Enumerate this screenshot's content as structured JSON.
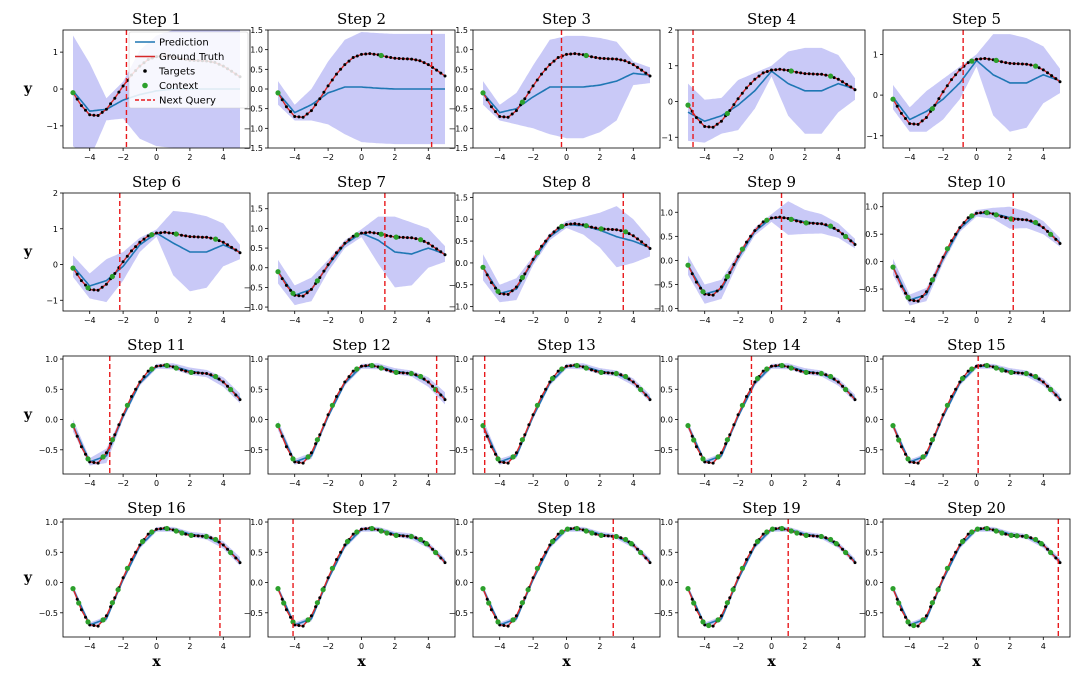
{
  "legend": {
    "prediction": "Prediction",
    "ground_truth": "Ground Truth",
    "targets": "Targets",
    "context": "Context",
    "next_query": "Next Query"
  },
  "colors": {
    "prediction": "#1f77b4",
    "uncertainty_band": "#c9c9f7",
    "ground_truth": "#d62728",
    "targets": "#000000",
    "context": "#2ca02c",
    "next_query": "#e8191c"
  },
  "chart_data": {
    "type": "line",
    "layout": "grid of 4 rows x 5 columns",
    "xlabel": "x",
    "ylabel": "y",
    "xlim": [
      -5.6,
      5.6
    ],
    "xticks": [
      -4,
      -2,
      0,
      2,
      4
    ],
    "ground_truth": {
      "x": [
        -5,
        -4.5,
        -4,
        -3.5,
        -3,
        -2.5,
        -2,
        -1.5,
        -1,
        -0.5,
        0,
        0.5,
        1,
        1.5,
        2,
        2.5,
        3,
        3.5,
        4,
        4.5,
        5
      ],
      "y": [
        -0.1,
        -0.45,
        -0.7,
        -0.72,
        -0.55,
        -0.25,
        0.08,
        0.38,
        0.62,
        0.8,
        0.88,
        0.9,
        0.87,
        0.82,
        0.78,
        0.77,
        0.76,
        0.72,
        0.62,
        0.48,
        0.33
      ]
    },
    "panels": [
      {
        "title": "Step 1",
        "query": -1.8,
        "ylim": [
          -1.6,
          1.6
        ],
        "yticks": [
          -1,
          0,
          1
        ],
        "pred_x": [
          -5,
          -4,
          -3,
          -2,
          -1,
          0,
          1,
          2,
          3,
          4,
          5
        ],
        "pred_y": [
          -0.05,
          -0.6,
          -0.55,
          -0.3,
          -0.15,
          -0.05,
          0.0,
          0.0,
          0.0,
          0.0,
          0.0
        ],
        "band": [
          1.5,
          1.3,
          0.3,
          0.5,
          1.2,
          1.5,
          1.6,
          1.6,
          1.6,
          1.6,
          1.6
        ]
      },
      {
        "title": "Step 2",
        "query": 4.2,
        "ylim": [
          -1.5,
          1.5
        ],
        "yticks": [
          -1.5,
          -1.0,
          -0.5,
          0.0,
          0.5,
          1.0,
          1.5
        ],
        "pred_x": [
          -5,
          -4,
          -3,
          -2,
          -1,
          0,
          1,
          2,
          3,
          4,
          5
        ],
        "pred_y": [
          -0.1,
          -0.6,
          -0.4,
          -0.1,
          0.05,
          0.05,
          0.02,
          0.0,
          0.0,
          0.0,
          0.0
        ],
        "band": [
          0.3,
          0.2,
          0.4,
          0.8,
          1.2,
          1.4,
          1.4,
          1.4,
          1.4,
          1.4,
          1.4
        ]
      },
      {
        "title": "Step 3",
        "query": -0.3,
        "ylim": [
          -1.5,
          1.5
        ],
        "yticks": [
          -1.5,
          -1.0,
          -0.5,
          0.0,
          0.5,
          1.0,
          1.5
        ],
        "pred_x": [
          -5,
          -4,
          -3,
          -2,
          -1,
          0,
          1,
          2,
          3,
          4,
          5
        ],
        "pred_y": [
          -0.1,
          -0.6,
          -0.5,
          -0.2,
          0.05,
          0.05,
          0.05,
          0.1,
          0.2,
          0.4,
          0.35
        ],
        "band": [
          0.3,
          0.2,
          0.4,
          0.8,
          1.2,
          1.3,
          1.3,
          1.2,
          1.0,
          0.3,
          0.2
        ]
      },
      {
        "title": "Step 4",
        "query": -4.7,
        "ylim": [
          -1.3,
          2.0
        ],
        "yticks": [
          -1,
          0,
          1,
          2
        ],
        "pred_x": [
          -5,
          -4,
          -3,
          -2,
          -1,
          0,
          1,
          2,
          3,
          4,
          5
        ],
        "pred_y": [
          -0.3,
          -0.55,
          -0.4,
          -0.1,
          0.3,
          0.85,
          0.5,
          0.3,
          0.3,
          0.5,
          0.35
        ],
        "band": [
          0.8,
          0.6,
          0.5,
          0.7,
          0.5,
          0.15,
          0.9,
          1.2,
          1.2,
          0.8,
          0.3
        ]
      },
      {
        "title": "Step 5",
        "query": -0.8,
        "ylim": [
          -1.3,
          1.6
        ],
        "yticks": [
          -1,
          0,
          1
        ],
        "pred_x": [
          -5,
          -4,
          -3,
          -2,
          -1,
          0,
          1,
          2,
          3,
          4,
          5
        ],
        "pred_y": [
          -0.05,
          -0.6,
          -0.4,
          -0.1,
          0.3,
          0.85,
          0.5,
          0.3,
          0.3,
          0.5,
          0.35
        ],
        "band": [
          0.3,
          0.3,
          0.5,
          0.5,
          0.4,
          0.15,
          1.0,
          1.2,
          1.1,
          0.7,
          0.3
        ]
      },
      {
        "title": "Step 6",
        "query": -2.2,
        "ylim": [
          -1.3,
          2.0
        ],
        "yticks": [
          -1,
          0,
          1,
          2
        ],
        "pred_x": [
          -5,
          -4,
          -3,
          -2,
          -1,
          0,
          1,
          2,
          3,
          4,
          5
        ],
        "pred_y": [
          -0.05,
          -0.6,
          -0.45,
          -0.05,
          0.55,
          0.88,
          0.6,
          0.35,
          0.35,
          0.55,
          0.35
        ],
        "band": [
          0.3,
          0.35,
          0.6,
          0.4,
          0.2,
          0.1,
          0.9,
          1.1,
          1.0,
          0.6,
          0.2
        ]
      },
      {
        "title": "Step 7",
        "query": 1.4,
        "ylim": [
          -1.1,
          1.9
        ],
        "yticks": [
          -1.0,
          -0.5,
          0.0,
          0.5,
          1.0,
          1.5
        ],
        "pred_x": [
          -5,
          -4,
          -3,
          -2,
          -1,
          0,
          1,
          2,
          3,
          4,
          5
        ],
        "pred_y": [
          -0.1,
          -0.7,
          -0.55,
          0.05,
          0.6,
          0.88,
          0.7,
          0.4,
          0.35,
          0.5,
          0.35
        ],
        "band": [
          0.3,
          0.25,
          0.3,
          0.15,
          0.1,
          0.1,
          0.6,
          0.9,
          0.8,
          0.5,
          0.2
        ]
      },
      {
        "title": "Step 8",
        "query": 3.4,
        "ylim": [
          -1.1,
          1.6
        ],
        "yticks": [
          -1.0,
          -0.5,
          0.0,
          0.5,
          1.0,
          1.5
        ],
        "pred_x": [
          -5,
          -4,
          -3,
          -2,
          -1,
          0,
          1,
          2,
          3,
          4,
          5
        ],
        "pred_y": [
          -0.1,
          -0.7,
          -0.6,
          0.05,
          0.6,
          0.88,
          0.85,
          0.75,
          0.6,
          0.5,
          0.35
        ],
        "band": [
          0.3,
          0.2,
          0.25,
          0.1,
          0.08,
          0.08,
          0.2,
          0.4,
          0.7,
          0.5,
          0.2
        ]
      },
      {
        "title": "Step 9",
        "query": 0.6,
        "ylim": [
          -1.05,
          1.4
        ],
        "yticks": [
          -1.0,
          -0.5,
          0.0,
          0.5,
          1.0
        ],
        "pred_x": [
          -5,
          -4,
          -3,
          -2,
          -1,
          0,
          1,
          2,
          3,
          4,
          5
        ],
        "pred_y": [
          -0.1,
          -0.7,
          -0.6,
          0.05,
          0.6,
          0.88,
          0.88,
          0.8,
          0.76,
          0.62,
          0.35
        ],
        "band": [
          0.2,
          0.2,
          0.2,
          0.1,
          0.08,
          0.08,
          0.35,
          0.25,
          0.2,
          0.15,
          0.1
        ]
      },
      {
        "title": "Step 10",
        "query": 2.2,
        "ylim": [
          -0.9,
          1.25
        ],
        "yticks": [
          -0.5,
          0.0,
          0.5,
          1.0
        ],
        "pred_x": [
          -5,
          -4,
          -3,
          -2,
          -1,
          0,
          1,
          2,
          3,
          4,
          5
        ],
        "pred_y": [
          -0.1,
          -0.7,
          -0.6,
          0.05,
          0.6,
          0.88,
          0.88,
          0.8,
          0.76,
          0.62,
          0.35
        ],
        "band": [
          0.15,
          0.1,
          0.12,
          0.08,
          0.06,
          0.06,
          0.1,
          0.2,
          0.15,
          0.12,
          0.08
        ]
      },
      {
        "title": "Step 11",
        "query": -2.8,
        "ylim": [
          -0.9,
          1.05
        ],
        "yticks": [
          -0.5,
          0.0,
          0.5,
          1.0
        ],
        "pred_x": [
          -5,
          -4,
          -3,
          -2,
          -1,
          0,
          1,
          2,
          3,
          4,
          5
        ],
        "pred_y": [
          -0.1,
          -0.7,
          -0.6,
          0.05,
          0.6,
          0.88,
          0.88,
          0.8,
          0.76,
          0.62,
          0.35
        ],
        "band": [
          0.1,
          0.06,
          0.12,
          0.05,
          0.04,
          0.04,
          0.05,
          0.06,
          0.06,
          0.08,
          0.08
        ]
      },
      {
        "title": "Step 12",
        "query": 4.5,
        "ylim": [
          -0.9,
          1.05
        ],
        "yticks": [
          -0.5,
          0.0,
          0.5,
          1.0
        ],
        "pred_x": [
          -5,
          -4,
          -3,
          -2,
          -1,
          0,
          1,
          2,
          3,
          4,
          5
        ],
        "pred_y": [
          -0.1,
          -0.7,
          -0.6,
          0.05,
          0.6,
          0.88,
          0.88,
          0.8,
          0.76,
          0.62,
          0.35
        ],
        "band": [
          0.08,
          0.05,
          0.05,
          0.04,
          0.04,
          0.04,
          0.05,
          0.05,
          0.05,
          0.08,
          0.1
        ]
      },
      {
        "title": "Step 13",
        "query": -4.9,
        "ylim": [
          -0.9,
          1.05
        ],
        "yticks": [
          -0.5,
          0.0,
          0.5,
          1.0
        ],
        "pred_x": [
          -5,
          -4,
          -3,
          -2,
          -1,
          0,
          1,
          2,
          3,
          4,
          5
        ],
        "pred_y": [
          -0.1,
          -0.7,
          -0.6,
          0.05,
          0.6,
          0.88,
          0.88,
          0.8,
          0.76,
          0.62,
          0.35
        ],
        "band": [
          0.1,
          0.05,
          0.04,
          0.04,
          0.04,
          0.04,
          0.05,
          0.05,
          0.05,
          0.06,
          0.06
        ]
      },
      {
        "title": "Step 14",
        "query": -1.2,
        "ylim": [
          -0.9,
          1.05
        ],
        "yticks": [
          -0.5,
          0.0,
          0.5,
          1.0
        ],
        "pred_x": [
          -5,
          -4,
          -3,
          -2,
          -1,
          0,
          1,
          2,
          3,
          4,
          5
        ],
        "pred_y": [
          -0.1,
          -0.7,
          -0.6,
          0.05,
          0.6,
          0.88,
          0.88,
          0.8,
          0.76,
          0.62,
          0.35
        ],
        "band": [
          0.06,
          0.04,
          0.04,
          0.04,
          0.04,
          0.04,
          0.05,
          0.05,
          0.05,
          0.06,
          0.06
        ]
      },
      {
        "title": "Step 15",
        "query": 0.1,
        "ylim": [
          -0.9,
          1.05
        ],
        "yticks": [
          -0.5,
          0.0,
          0.5,
          1.0
        ],
        "pred_x": [
          -5,
          -4,
          -3,
          -2,
          -1,
          0,
          1,
          2,
          3,
          4,
          5
        ],
        "pred_y": [
          -0.1,
          -0.7,
          -0.6,
          0.05,
          0.6,
          0.88,
          0.88,
          0.8,
          0.76,
          0.62,
          0.35
        ],
        "band": [
          0.06,
          0.04,
          0.04,
          0.04,
          0.04,
          0.04,
          0.04,
          0.05,
          0.05,
          0.06,
          0.06
        ]
      },
      {
        "title": "Step 16",
        "query": 3.8,
        "ylim": [
          -0.9,
          1.05
        ],
        "yticks": [
          -0.5,
          0.0,
          0.5,
          1.0
        ],
        "pred_x": [
          -5,
          -4,
          -3,
          -2,
          -1,
          0,
          1,
          2,
          3,
          4,
          5
        ],
        "pred_y": [
          -0.1,
          -0.7,
          -0.6,
          0.05,
          0.6,
          0.88,
          0.88,
          0.8,
          0.76,
          0.62,
          0.35
        ],
        "band": [
          0.05,
          0.04,
          0.04,
          0.04,
          0.04,
          0.04,
          0.04,
          0.04,
          0.05,
          0.06,
          0.07
        ]
      },
      {
        "title": "Step 17",
        "query": -4.1,
        "ylim": [
          -0.9,
          1.05
        ],
        "yticks": [
          -0.5,
          0.0,
          0.5,
          1.0
        ],
        "pred_x": [
          -5,
          -4,
          -3,
          -2,
          -1,
          0,
          1,
          2,
          3,
          4,
          5
        ],
        "pred_y": [
          -0.1,
          -0.7,
          -0.6,
          0.05,
          0.6,
          0.88,
          0.88,
          0.8,
          0.76,
          0.62,
          0.35
        ],
        "band": [
          0.05,
          0.04,
          0.04,
          0.04,
          0.04,
          0.04,
          0.04,
          0.04,
          0.05,
          0.05,
          0.05
        ]
      },
      {
        "title": "Step 18",
        "query": 2.8,
        "ylim": [
          -0.9,
          1.05
        ],
        "yticks": [
          -0.5,
          0.0,
          0.5,
          1.0
        ],
        "pred_x": [
          -5,
          -4,
          -3,
          -2,
          -1,
          0,
          1,
          2,
          3,
          4,
          5
        ],
        "pred_y": [
          -0.1,
          -0.7,
          -0.6,
          0.05,
          0.6,
          0.88,
          0.88,
          0.8,
          0.76,
          0.62,
          0.35
        ],
        "band": [
          0.05,
          0.04,
          0.04,
          0.04,
          0.04,
          0.04,
          0.04,
          0.04,
          0.04,
          0.05,
          0.05
        ]
      },
      {
        "title": "Step 19",
        "query": 1.0,
        "ylim": [
          -0.9,
          1.05
        ],
        "yticks": [
          -0.5,
          0.0,
          0.5,
          1.0
        ],
        "pred_x": [
          -5,
          -4,
          -3,
          -2,
          -1,
          0,
          1,
          2,
          3,
          4,
          5
        ],
        "pred_y": [
          -0.1,
          -0.7,
          -0.6,
          0.05,
          0.6,
          0.88,
          0.88,
          0.8,
          0.76,
          0.62,
          0.35
        ],
        "band": [
          0.05,
          0.04,
          0.04,
          0.04,
          0.04,
          0.04,
          0.04,
          0.04,
          0.04,
          0.05,
          0.05
        ]
      },
      {
        "title": "Step 20",
        "query": 4.9,
        "ylim": [
          -0.9,
          1.05
        ],
        "yticks": [
          -0.5,
          0.0,
          0.5,
          1.0
        ],
        "pred_x": [
          -5,
          -4,
          -3,
          -2,
          -1,
          0,
          1,
          2,
          3,
          4,
          5
        ],
        "pred_y": [
          -0.1,
          -0.7,
          -0.6,
          0.05,
          0.6,
          0.88,
          0.88,
          0.8,
          0.76,
          0.62,
          0.35
        ],
        "band": [
          0.05,
          0.04,
          0.04,
          0.04,
          0.04,
          0.04,
          0.04,
          0.04,
          0.04,
          0.05,
          0.05
        ]
      }
    ]
  }
}
